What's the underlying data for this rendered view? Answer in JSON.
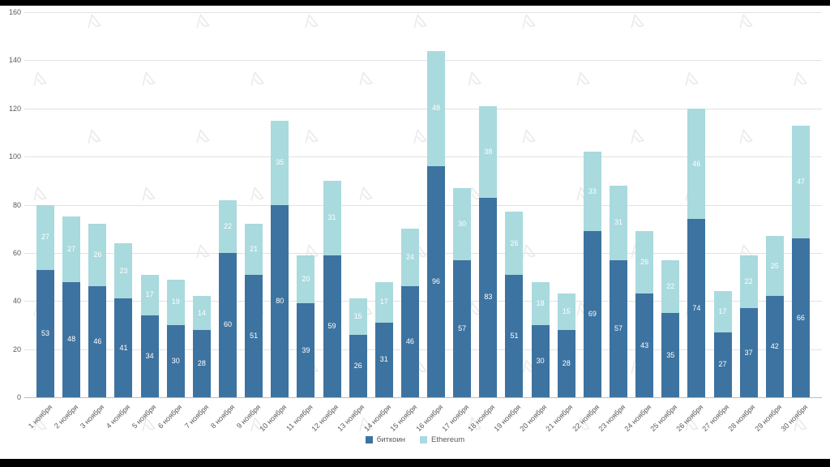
{
  "chart_data": {
    "type": "bar",
    "stacked": true,
    "title": "",
    "xlabel": "",
    "ylabel": "",
    "ylim": [
      0,
      160
    ],
    "ytick_step": 20,
    "grid": true,
    "legend_position": "bottom",
    "categories": [
      "1 ноября",
      "2 ноября",
      "3 ноября",
      "4 ноября",
      "5 ноября",
      "6 ноября",
      "7 ноября",
      "8 ноября",
      "9 ноября",
      "10 ноября",
      "11 ноября",
      "12 ноября",
      "13 ноября",
      "14 ноября",
      "15 ноября",
      "16 ноября",
      "17 ноября",
      "18 ноября",
      "19 ноября",
      "20 ноября",
      "21 ноября",
      "22 ноября",
      "23 ноября",
      "24 ноября",
      "25 ноября",
      "26 ноября",
      "27 ноября",
      "28 ноября",
      "29 ноября",
      "30 ноября"
    ],
    "series": [
      {
        "name": "биткоин",
        "color": "#3d73a0",
        "values": [
          53,
          48,
          46,
          41,
          34,
          30,
          28,
          60,
          51,
          80,
          39,
          59,
          26,
          31,
          46,
          96,
          57,
          83,
          51,
          30,
          28,
          69,
          57,
          43,
          35,
          74,
          27,
          37,
          42,
          66
        ]
      },
      {
        "name": "Ethereum",
        "color": "#a9dade",
        "values": [
          27,
          27,
          26,
          23,
          17,
          19,
          14,
          22,
          21,
          35,
          20,
          31,
          15,
          17,
          24,
          48,
          30,
          38,
          26,
          18,
          15,
          33,
          31,
          26,
          22,
          46,
          17,
          22,
          25,
          47
        ]
      }
    ]
  },
  "colors": {
    "background": "#ffffff",
    "gridline": "#e2e2e2",
    "axis_line": "#bdbdbd",
    "axis_text": "#595959",
    "data_label": "#ffffff",
    "watermark": "#d9d9d9",
    "letterbox": "#000000"
  },
  "watermark": {
    "name": "forklog-logo-watermark"
  }
}
